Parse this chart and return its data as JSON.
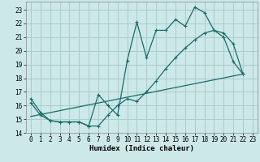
{
  "title": "",
  "xlabel": "Humidex (Indice chaleur)",
  "bg_color": "#cce8e8",
  "grid_color": "#aacccc",
  "line_color": "#1a6b6b",
  "xlim": [
    -0.5,
    23.5
  ],
  "ylim": [
    14.0,
    23.6
  ],
  "yticks": [
    14,
    15,
    16,
    17,
    18,
    19,
    20,
    21,
    22,
    23
  ],
  "xticks": [
    0,
    1,
    2,
    3,
    4,
    5,
    6,
    7,
    8,
    9,
    10,
    11,
    12,
    13,
    14,
    15,
    16,
    17,
    18,
    19,
    20,
    21,
    22,
    23
  ],
  "line1_x": [
    0,
    1,
    2,
    3,
    4,
    5,
    6,
    7,
    8,
    9,
    10,
    11,
    12,
    13,
    14,
    15,
    16,
    17,
    18,
    19,
    20,
    21,
    22
  ],
  "line1_y": [
    16.5,
    15.5,
    14.9,
    14.8,
    14.8,
    14.8,
    14.5,
    16.8,
    16.0,
    15.3,
    19.3,
    22.1,
    19.5,
    21.5,
    21.5,
    22.3,
    21.8,
    23.2,
    22.8,
    21.5,
    21.0,
    19.2,
    18.3
  ],
  "line2_x": [
    0,
    1,
    2,
    3,
    4,
    5,
    6,
    7,
    8,
    9,
    10,
    11,
    12,
    13,
    14,
    15,
    16,
    17,
    18,
    19,
    20,
    21,
    22
  ],
  "line2_y": [
    16.2,
    15.3,
    14.9,
    14.8,
    14.8,
    14.8,
    14.5,
    14.5,
    15.3,
    16.0,
    16.5,
    16.3,
    17.0,
    17.8,
    18.7,
    19.5,
    20.2,
    20.8,
    21.3,
    21.5,
    21.3,
    20.5,
    18.3
  ],
  "line3_x": [
    0,
    22
  ],
  "line3_y": [
    15.2,
    18.3
  ]
}
